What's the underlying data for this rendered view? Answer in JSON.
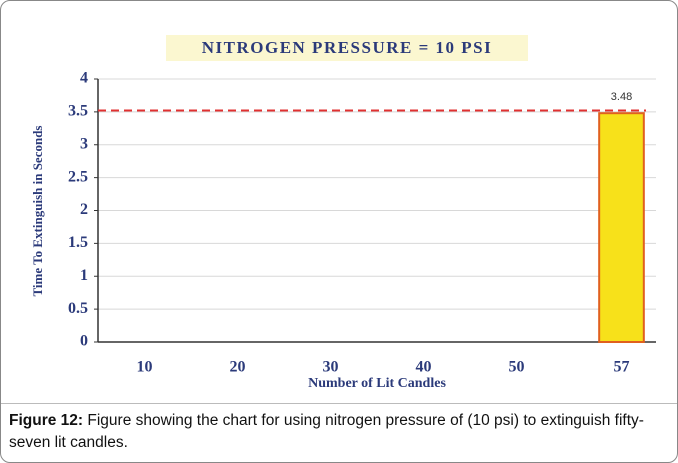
{
  "chart_data": {
    "type": "bar",
    "title": "NITROGEN PRESSURE = 10 PSI",
    "x_label": "Number of Lit Candles",
    "y_label": "Time To Extinguish in Seconds",
    "categories": [
      "10",
      "20",
      "30",
      "40",
      "50",
      "57"
    ],
    "values": [
      null,
      null,
      null,
      null,
      null,
      3.48
    ],
    "color": "#f7e11a",
    "edge_color": "#e0601e",
    "reference_line": 3.52,
    "reference_color": "#e03030",
    "ylim": [
      0,
      4
    ],
    "yticks": [
      0,
      0.5,
      1,
      1.5,
      2,
      2.5,
      3,
      3.5,
      4
    ],
    "grid": true
  },
  "caption": {
    "label": "Figure 12:",
    "text": "Figure showing the chart for using nitrogen pressure of (10 psi) to extinguish fifty-seven lit candles."
  }
}
